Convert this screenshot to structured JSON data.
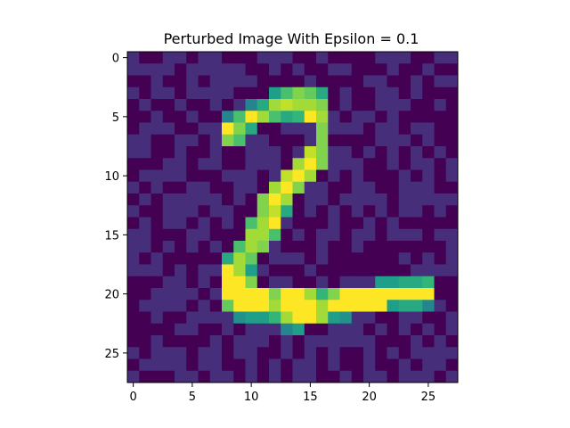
{
  "chart_data": {
    "type": "heatmap",
    "title": "Perturbed Image With Epsilon = 0.1",
    "xlabel": "",
    "ylabel": "",
    "rows": 28,
    "cols": 28,
    "x_ticks": [
      0,
      5,
      10,
      15,
      20,
      25
    ],
    "y_ticks": [
      0,
      5,
      10,
      15,
      20,
      25
    ],
    "xlim": [
      -0.5,
      27.5
    ],
    "ylim": [
      27.5,
      -0.5
    ],
    "colormap": "viridis",
    "colors": {
      "dark": "#440154",
      "low": "#482878",
      "mid_low": "#3e4a89",
      "mid": "#31688e",
      "teal": "#26828e",
      "green_teal": "#1f9e89",
      "green": "#35b779",
      "light_green": "#6ece58",
      "lime": "#b5de2b",
      "yellow": "#fde725"
    },
    "stroke_pixels": [
      [
        3,
        12,
        0.55
      ],
      [
        3,
        13,
        0.7
      ],
      [
        3,
        14,
        0.8
      ],
      [
        3,
        15,
        0.75
      ],
      [
        3,
        16,
        0.6
      ],
      [
        4,
        10,
        0.45
      ],
      [
        4,
        11,
        0.6
      ],
      [
        4,
        12,
        0.85
      ],
      [
        4,
        13,
        0.9
      ],
      [
        4,
        14,
        0.85
      ],
      [
        4,
        15,
        0.85
      ],
      [
        4,
        16,
        0.8
      ],
      [
        5,
        8,
        0.45
      ],
      [
        5,
        9,
        0.7
      ],
      [
        5,
        10,
        1.0
      ],
      [
        5,
        11,
        0.85
      ],
      [
        5,
        12,
        0.7
      ],
      [
        5,
        13,
        0.6
      ],
      [
        5,
        14,
        0.65
      ],
      [
        5,
        15,
        1.0
      ],
      [
        5,
        16,
        0.85
      ],
      [
        6,
        8,
        1.0
      ],
      [
        6,
        9,
        0.8
      ],
      [
        6,
        10,
        0.6
      ],
      [
        6,
        16,
        0.8
      ],
      [
        7,
        8,
        0.8
      ],
      [
        7,
        9,
        0.7
      ],
      [
        7,
        16,
        0.8
      ],
      [
        8,
        15,
        0.9
      ],
      [
        8,
        16,
        0.8
      ],
      [
        9,
        14,
        0.85
      ],
      [
        9,
        15,
        1.0
      ],
      [
        9,
        16,
        0.8
      ],
      [
        10,
        13,
        0.9
      ],
      [
        10,
        14,
        1.0
      ],
      [
        10,
        15,
        0.85
      ],
      [
        11,
        12,
        0.85
      ],
      [
        11,
        13,
        1.0
      ],
      [
        11,
        14,
        0.8
      ],
      [
        12,
        11,
        0.8
      ],
      [
        12,
        12,
        1.0
      ],
      [
        12,
        13,
        0.85
      ],
      [
        13,
        11,
        0.8
      ],
      [
        13,
        12,
        0.9
      ],
      [
        13,
        13,
        0.6
      ],
      [
        14,
        10,
        0.7
      ],
      [
        14,
        11,
        0.85
      ],
      [
        14,
        12,
        1.0
      ],
      [
        15,
        10,
        0.85
      ],
      [
        15,
        11,
        0.85
      ],
      [
        15,
        12,
        0.7
      ],
      [
        16,
        9,
        0.7
      ],
      [
        16,
        10,
        0.85
      ],
      [
        16,
        11,
        0.8
      ],
      [
        17,
        8,
        0.6
      ],
      [
        17,
        9,
        0.85
      ],
      [
        17,
        10,
        0.75
      ],
      [
        18,
        8,
        1.0
      ],
      [
        18,
        9,
        0.85
      ],
      [
        18,
        10,
        0.55
      ],
      [
        19,
        8,
        1.0
      ],
      [
        19,
        9,
        1.0
      ],
      [
        19,
        10,
        0.8
      ],
      [
        19,
        21,
        0.55
      ],
      [
        19,
        22,
        0.55
      ],
      [
        19,
        23,
        0.6
      ],
      [
        19,
        24,
        0.6
      ],
      [
        19,
        25,
        0.65
      ],
      [
        20,
        8,
        1.0
      ],
      [
        20,
        9,
        1.0
      ],
      [
        20,
        10,
        1.0
      ],
      [
        20,
        11,
        1.0
      ],
      [
        20,
        12,
        0.8
      ],
      [
        20,
        13,
        1.0
      ],
      [
        20,
        14,
        1.0
      ],
      [
        20,
        15,
        0.85
      ],
      [
        20,
        16,
        0.65
      ],
      [
        20,
        17,
        0.8
      ],
      [
        20,
        18,
        1.0
      ],
      [
        20,
        19,
        1.0
      ],
      [
        20,
        20,
        1.0
      ],
      [
        20,
        21,
        1.0
      ],
      [
        20,
        22,
        1.0
      ],
      [
        20,
        23,
        1.0
      ],
      [
        20,
        24,
        1.0
      ],
      [
        20,
        25,
        1.0
      ],
      [
        21,
        8,
        0.75
      ],
      [
        21,
        9,
        1.0
      ],
      [
        21,
        10,
        1.0
      ],
      [
        21,
        11,
        1.0
      ],
      [
        21,
        12,
        0.85
      ],
      [
        21,
        13,
        1.0
      ],
      [
        21,
        14,
        1.0
      ],
      [
        21,
        15,
        1.0
      ],
      [
        21,
        16,
        0.85
      ],
      [
        21,
        17,
        1.0
      ],
      [
        21,
        18,
        1.0
      ],
      [
        21,
        19,
        1.0
      ],
      [
        21,
        20,
        1.0
      ],
      [
        21,
        21,
        1.0
      ],
      [
        21,
        22,
        0.55
      ],
      [
        21,
        23,
        0.6
      ],
      [
        21,
        24,
        0.6
      ],
      [
        21,
        25,
        0.45
      ],
      [
        22,
        9,
        0.5
      ],
      [
        22,
        10,
        0.55
      ],
      [
        22,
        11,
        0.55
      ],
      [
        22,
        12,
        0.65
      ],
      [
        22,
        13,
        0.85
      ],
      [
        22,
        14,
        1.0
      ],
      [
        22,
        15,
        1.0
      ],
      [
        22,
        16,
        0.85
      ],
      [
        22,
        17,
        0.55
      ],
      [
        22,
        18,
        0.5
      ],
      [
        23,
        13,
        0.45
      ],
      [
        23,
        14,
        0.55
      ]
    ]
  }
}
